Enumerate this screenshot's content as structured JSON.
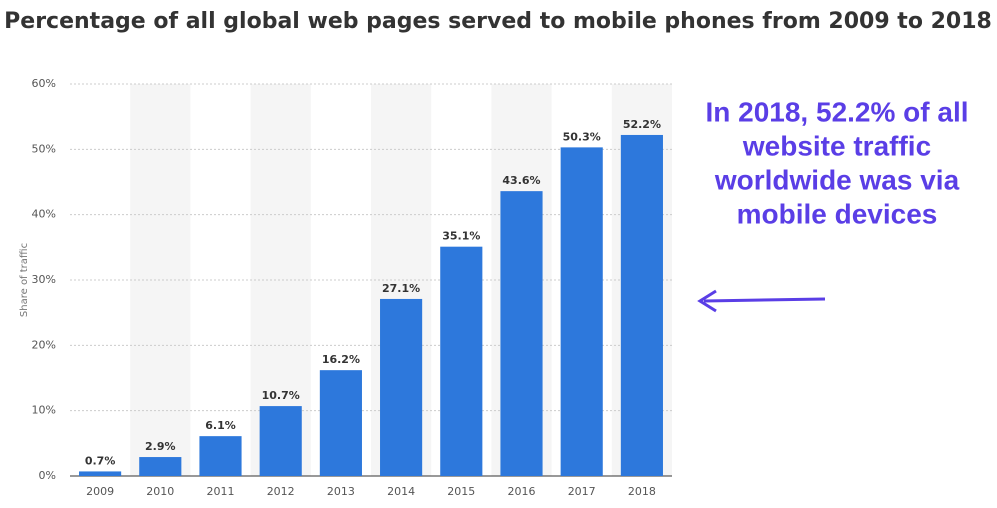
{
  "chart_data": {
    "type": "bar",
    "title": "Percentage of all global web pages served to mobile phones from 2009 to 2018",
    "ylabel": "Share of traffic",
    "categories": [
      "2009",
      "2010",
      "2011",
      "2012",
      "2013",
      "2014",
      "2015",
      "2016",
      "2017",
      "2018"
    ],
    "values": [
      0.7,
      2.9,
      6.1,
      10.7,
      16.2,
      27.1,
      35.1,
      43.6,
      50.3,
      52.2
    ],
    "value_labels": [
      "0.7%",
      "2.9%",
      "6.1%",
      "10.7%",
      "16.2%",
      "27.1%",
      "35.1%",
      "43.6%",
      "50.3%",
      "52.2%"
    ],
    "color": "#2d78dc",
    "ylim": [
      0,
      60
    ],
    "yticks": [
      {
        "value": 0,
        "label": "0%"
      },
      {
        "value": 10,
        "label": "10%"
      },
      {
        "value": 20,
        "label": "20%"
      },
      {
        "value": 30,
        "label": "30%"
      },
      {
        "value": 40,
        "label": "40%"
      },
      {
        "value": 50,
        "label": "50%"
      },
      {
        "value": 60,
        "label": "60%"
      }
    ],
    "grid": true,
    "annotation": [
      "In 2018, 52.2% of all",
      "website traffic",
      "worldwide was via",
      "mobile devices"
    ],
    "annotation_color": "#5a3ee6"
  }
}
